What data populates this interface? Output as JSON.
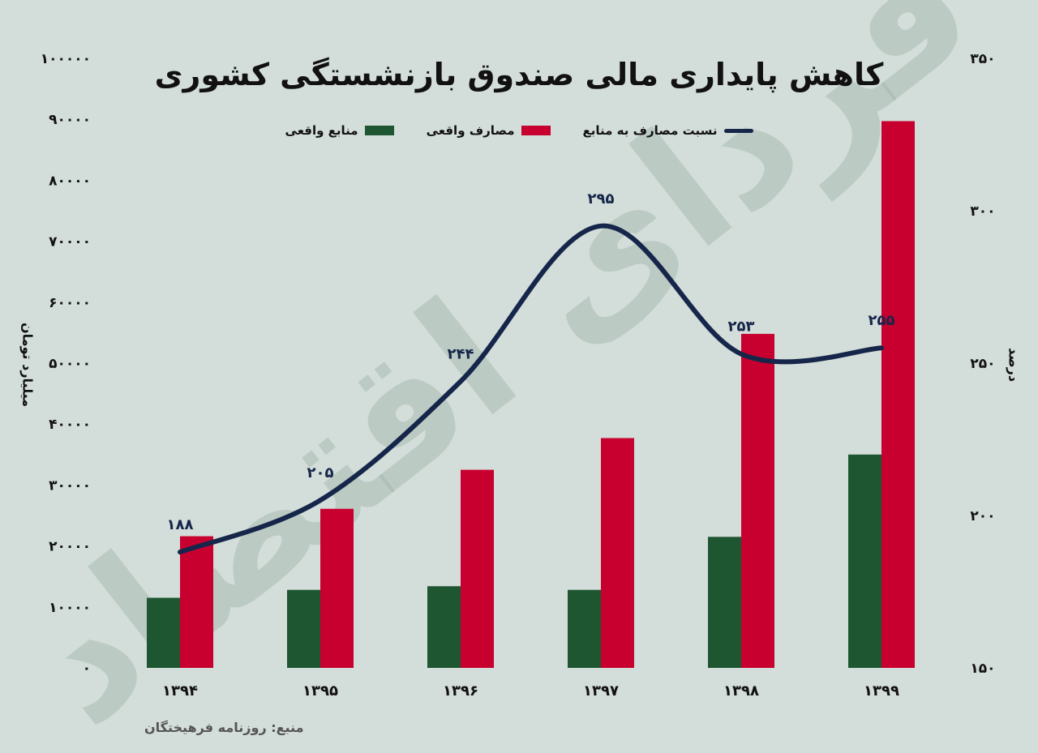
{
  "chart_data": {
    "type": "bar",
    "title": "کاهش پایداری مالی صندوق بازنشستگی کشوری",
    "categories": [
      "۱۳۹۴",
      "۱۳۹۵",
      "۱۳۹۶",
      "۱۳۹۷",
      "۱۳۹۸",
      "۱۳۹۹"
    ],
    "series": [
      {
        "name": "منابع واقعی",
        "type": "bar",
        "axis": "left",
        "color": "#1e5631",
        "values": [
          11500,
          12800,
          13400,
          12800,
          21500,
          35000
        ]
      },
      {
        "name": "مصارف واقعی",
        "type": "bar",
        "axis": "left",
        "color": "#c8002f",
        "values": [
          21600,
          26100,
          32500,
          37700,
          54800,
          89700
        ]
      },
      {
        "name": "نسبت مصارف به منابع",
        "type": "line",
        "axis": "right",
        "color": "#16264a",
        "values": [
          188,
          205,
          244,
          295,
          253,
          255
        ],
        "value_labels": [
          "۱۸۸",
          "۲۰۵",
          "۲۴۴",
          "۲۹۵",
          "۲۵۳",
          "۲۵۵"
        ]
      }
    ],
    "ylabel": "میلیارد تومان",
    "ylim": [
      0,
      100000
    ],
    "yticks": [
      "۰",
      "۱۰۰۰۰",
      "۲۰۰۰۰",
      "۳۰۰۰۰",
      "۴۰۰۰۰",
      "۵۰۰۰۰",
      "۶۰۰۰۰",
      "۷۰۰۰۰",
      "۸۰۰۰۰",
      "۹۰۰۰۰",
      "۱۰۰۰۰۰"
    ],
    "y2label": "درصد",
    "y2lim": [
      150,
      350
    ],
    "y2ticks": [
      "۱۵۰",
      "۲۰۰",
      "۲۵۰",
      "۳۰۰",
      "۳۵۰"
    ],
    "legend": "top-center",
    "grid": false
  },
  "source": "منبع: روزنامه فرهیختگان",
  "watermark": "فردای اقتصاد"
}
